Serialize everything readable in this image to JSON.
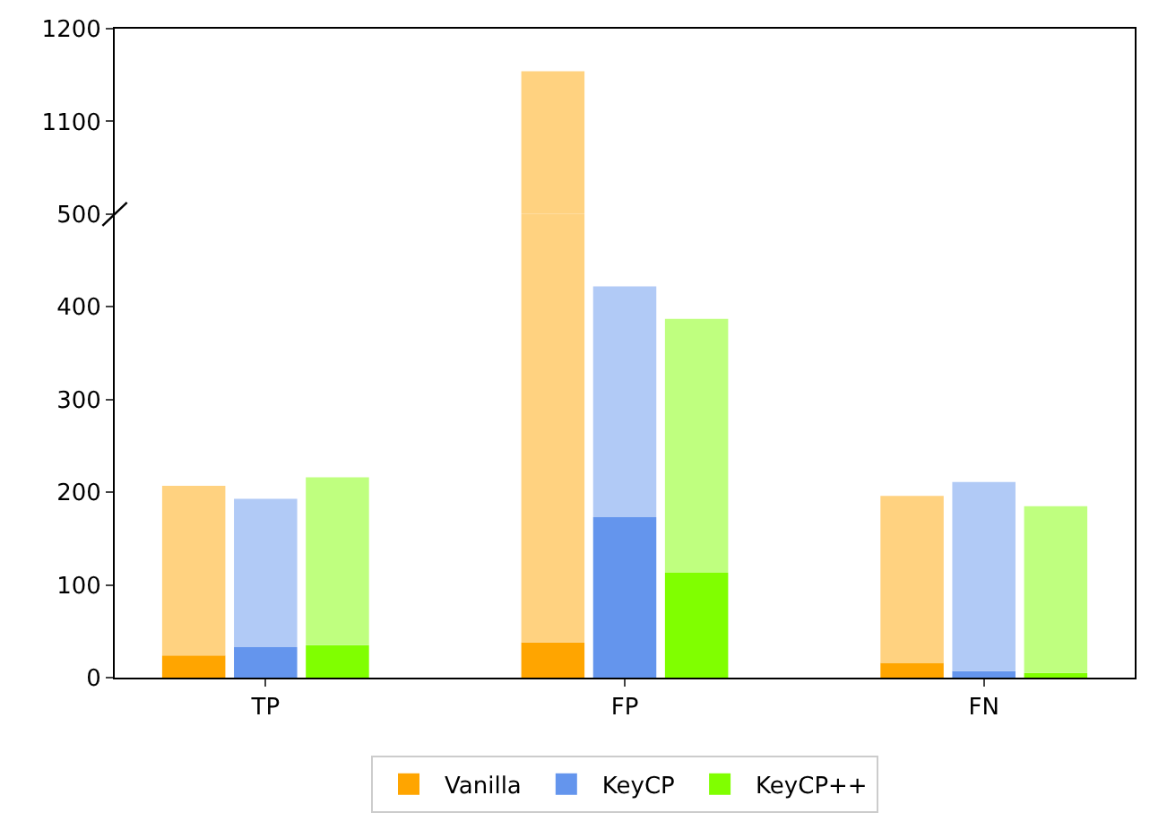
{
  "chart_data": [
    {
      "type": "bar",
      "ylim": [
        1000,
        1200
      ],
      "yticks": [
        1100,
        1200
      ],
      "tick_labels": "y",
      "series": [
        {
          "color": "#ffd280",
          "values": [
            null,
            null,
            null,
            null,
            null,
            1154,
            null,
            null,
            null,
            null,
            null,
            null,
            null
          ]
        }
      ]
    },
    {
      "type": "bar",
      "categories": [
        null,
        "TP",
        null,
        null,
        null,
        null,
        "FP",
        null,
        null,
        null,
        null,
        "FN",
        null
      ],
      "stacked": true,
      "ylim": [
        0,
        500
      ],
      "yticks": [
        0,
        100,
        200,
        300,
        400,
        500
      ],
      "legend": "bottom",
      "series": [
        {
          "name": "Vanilla",
          "color": "#ffa500",
          "values": [
            24,
            null,
            null,
            null,
            null,
            38,
            null,
            null,
            null,
            null,
            16,
            null,
            null
          ]
        },
        {
          "color": "#ffd280",
          "values": [
            183,
            null,
            null,
            null,
            null,
            462,
            null,
            null,
            null,
            null,
            180,
            null,
            null
          ]
        },
        {
          "name": "KeyCP",
          "color": "#6495ed",
          "values": [
            null,
            33,
            null,
            null,
            null,
            null,
            173,
            null,
            null,
            null,
            null,
            7,
            null
          ]
        },
        {
          "color": "#b1caf6",
          "values": [
            null,
            160,
            null,
            null,
            null,
            null,
            249,
            null,
            null,
            null,
            null,
            204,
            null
          ]
        },
        {
          "name": "KeyCP++",
          "color": "#80ff00",
          "values": [
            null,
            null,
            35,
            null,
            null,
            null,
            null,
            113,
            null,
            null,
            null,
            null,
            5
          ]
        },
        {
          "color": "#bfff7f",
          "values": [
            null,
            null,
            181,
            null,
            null,
            null,
            null,
            274,
            null,
            null,
            null,
            null,
            180
          ]
        }
      ]
    }
  ]
}
